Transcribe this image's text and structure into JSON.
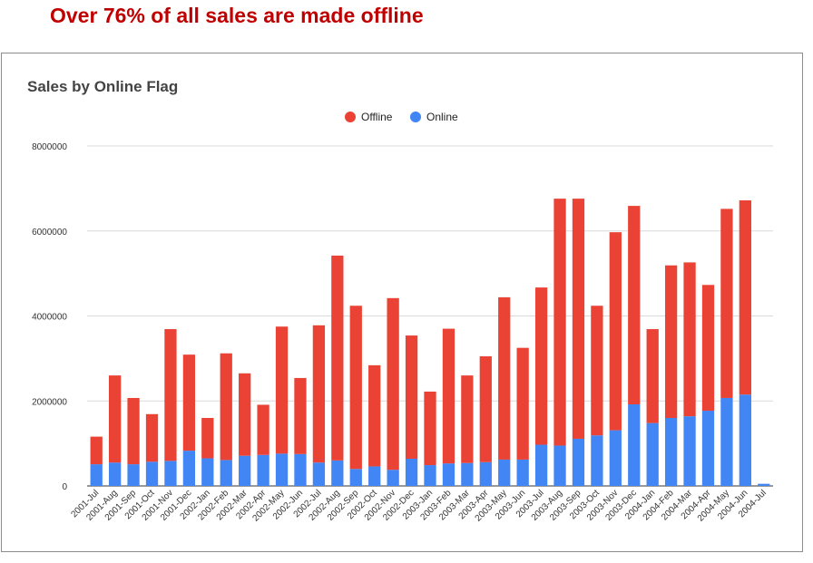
{
  "headline": "Over 76% of all sales are made offline",
  "chart_data": {
    "type": "bar",
    "stacked": true,
    "title": "Sales by Online Flag",
    "xlabel": "",
    "ylabel": "",
    "ylim": [
      0,
      8000000
    ],
    "yticks": [
      0,
      2000000,
      4000000,
      6000000,
      8000000
    ],
    "grid": true,
    "legend_position": "top",
    "categories": [
      "2001-Jul",
      "2001-Aug",
      "2001-Sep",
      "2001-Oct",
      "2001-Nov",
      "2001-Dec",
      "2002-Jan",
      "2002-Feb",
      "2002-Mar",
      "2002-Apr",
      "2002-May",
      "2002-Jun",
      "2002-Jul",
      "2002-Aug",
      "2002-Sep",
      "2002-Oct",
      "2002-Nov",
      "2002-Dec",
      "2003-Jan",
      "2003-Feb",
      "2003-Mar",
      "2003-Apr",
      "2003-May",
      "2003-Jun",
      "2003-Jul",
      "2003-Aug",
      "2003-Sep",
      "2003-Oct",
      "2003-Nov",
      "2003-Dec",
      "2004-Jan",
      "2004-Feb",
      "2004-Mar",
      "2004-Apr",
      "2004-May",
      "2004-Jun",
      "2004-Jul"
    ],
    "series": [
      {
        "name": "Online",
        "color": "#4285f4",
        "values": [
          510000,
          550000,
          510000,
          570000,
          590000,
          830000,
          650000,
          610000,
          710000,
          730000,
          760000,
          750000,
          550000,
          600000,
          400000,
          460000,
          380000,
          640000,
          490000,
          530000,
          540000,
          560000,
          620000,
          620000,
          970000,
          950000,
          1110000,
          1190000,
          1310000,
          1920000,
          1480000,
          1600000,
          1640000,
          1770000,
          2070000,
          2150000,
          50000
        ]
      },
      {
        "name": "Offline",
        "color": "#ea4335",
        "values": [
          650000,
          2050000,
          1560000,
          1120000,
          3100000,
          2260000,
          950000,
          2510000,
          1940000,
          1180000,
          2990000,
          1790000,
          3230000,
          4820000,
          3840000,
          2380000,
          4040000,
          2900000,
          1730000,
          3170000,
          2060000,
          2490000,
          3820000,
          2630000,
          3700000,
          5810000,
          5650000,
          3050000,
          4660000,
          4670000,
          2210000,
          3590000,
          3620000,
          2960000,
          4450000,
          4570000,
          0
        ]
      }
    ]
  },
  "labels": {
    "yticks": [
      "0",
      "2000000",
      "4000000",
      "6000000",
      "8000000"
    ]
  }
}
